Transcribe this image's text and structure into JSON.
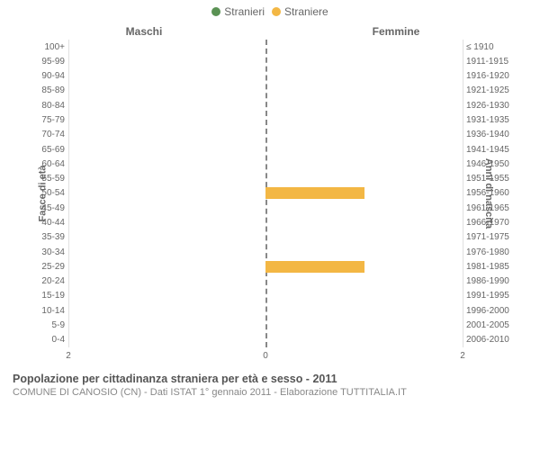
{
  "legend": {
    "items": [
      {
        "label": "Stranieri",
        "color": "#5a9254"
      },
      {
        "label": "Straniere",
        "color": "#f3b744"
      }
    ]
  },
  "chart": {
    "type": "population-pyramid",
    "left_title": "Maschi",
    "right_title": "Femmine",
    "y_axis_left_title": "Fasce di età",
    "y_axis_right_title": "Anni di nascita",
    "x_max": 2,
    "x_ticks": [
      2,
      0,
      2
    ],
    "grid_color": "#e0e0e0",
    "center_line_color": "#888888",
    "background_color": "#ffffff",
    "bar_color_male": "#5a9254",
    "bar_color_female": "#f3b744",
    "label_color": "#666666",
    "label_fontsize": 10,
    "title_fontsize": 12,
    "rows": [
      {
        "age": "100+",
        "birth": "≤ 1910",
        "male": 0,
        "female": 0
      },
      {
        "age": "95-99",
        "birth": "1911-1915",
        "male": 0,
        "female": 0
      },
      {
        "age": "90-94",
        "birth": "1916-1920",
        "male": 0,
        "female": 0
      },
      {
        "age": "85-89",
        "birth": "1921-1925",
        "male": 0,
        "female": 0
      },
      {
        "age": "80-84",
        "birth": "1926-1930",
        "male": 0,
        "female": 0
      },
      {
        "age": "75-79",
        "birth": "1931-1935",
        "male": 0,
        "female": 0
      },
      {
        "age": "70-74",
        "birth": "1936-1940",
        "male": 0,
        "female": 0
      },
      {
        "age": "65-69",
        "birth": "1941-1945",
        "male": 0,
        "female": 0
      },
      {
        "age": "60-64",
        "birth": "1946-1950",
        "male": 0,
        "female": 0
      },
      {
        "age": "55-59",
        "birth": "1951-1955",
        "male": 0,
        "female": 0
      },
      {
        "age": "50-54",
        "birth": "1956-1960",
        "male": 0,
        "female": 1
      },
      {
        "age": "45-49",
        "birth": "1961-1965",
        "male": 0,
        "female": 0
      },
      {
        "age": "40-44",
        "birth": "1966-1970",
        "male": 0,
        "female": 0
      },
      {
        "age": "35-39",
        "birth": "1971-1975",
        "male": 0,
        "female": 0
      },
      {
        "age": "30-34",
        "birth": "1976-1980",
        "male": 0,
        "female": 0
      },
      {
        "age": "25-29",
        "birth": "1981-1985",
        "male": 0,
        "female": 1
      },
      {
        "age": "20-24",
        "birth": "1986-1990",
        "male": 0,
        "female": 0
      },
      {
        "age": "15-19",
        "birth": "1991-1995",
        "male": 0,
        "female": 0
      },
      {
        "age": "10-14",
        "birth": "1996-2000",
        "male": 0,
        "female": 0
      },
      {
        "age": "5-9",
        "birth": "2001-2005",
        "male": 0,
        "female": 0
      },
      {
        "age": "0-4",
        "birth": "2006-2010",
        "male": 0,
        "female": 0
      }
    ]
  },
  "footer": {
    "title": "Popolazione per cittadinanza straniera per età e sesso - 2011",
    "subtitle": "COMUNE DI CANOSIO (CN) - Dati ISTAT 1° gennaio 2011 - Elaborazione TUTTITALIA.IT"
  }
}
